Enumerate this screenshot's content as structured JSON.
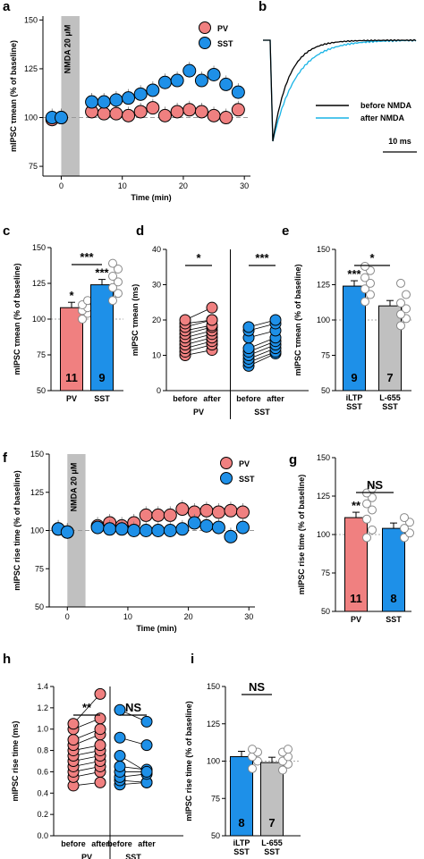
{
  "colors": {
    "pv": "#f08080",
    "sst": "#1e90e8",
    "gray": "#c0c0c0",
    "cyan": "#19b4e6"
  },
  "chart_data": [
    {
      "panel": "a",
      "type": "scatter",
      "xlabel": "Time  (min)",
      "ylabel": "mIPSC τmean (% of baseline)",
      "xticks": [
        0,
        10,
        20,
        30
      ],
      "yticks": [
        75,
        100,
        125,
        150
      ],
      "xlim": [
        -3,
        31
      ],
      "ylim": [
        70,
        152
      ],
      "shade_label": "NMDA 20 μM",
      "shade_x": [
        0,
        3
      ],
      "legend": [
        "PV",
        "SST"
      ],
      "series": [
        {
          "name": "PV",
          "x": [
            -1.5,
            0,
            5,
            7,
            9,
            11,
            13,
            15,
            17,
            19,
            21,
            23,
            25,
            27,
            29
          ],
          "y": [
            99,
            100,
            103,
            102,
            102,
            101,
            103,
            105,
            101,
            103,
            104,
            103,
            101,
            100,
            104
          ]
        },
        {
          "name": "SST",
          "x": [
            -1.5,
            0,
            5,
            7,
            9,
            11,
            13,
            15,
            17,
            19,
            21,
            23,
            25,
            27,
            29
          ],
          "y": [
            100,
            100,
            108,
            108,
            109,
            110,
            112,
            114,
            118,
            119,
            124,
            119,
            122,
            117,
            113
          ]
        }
      ]
    },
    {
      "panel": "b",
      "type": "line",
      "legend": [
        "before NMDA",
        "after NMDA"
      ],
      "scalebar": "10 ms"
    },
    {
      "panel": "c",
      "type": "bar",
      "ylabel": "mIPSC τmean (% of baseline)",
      "yticks": [
        50,
        75,
        100,
        125,
        150
      ],
      "ylim": [
        50,
        150
      ],
      "categories": [
        "PV",
        "SST"
      ],
      "values": [
        108,
        124
      ],
      "n": [
        "11",
        "9"
      ],
      "stars": [
        "*",
        "***"
      ],
      "bracket": "***"
    },
    {
      "panel": "d",
      "type": "scatter",
      "ylabel": "mIPSC τmean (ms)",
      "yticks": [
        0,
        10,
        20,
        30,
        40
      ],
      "ylim": [
        0,
        40
      ],
      "xticks": [
        "before",
        "after",
        "before",
        "after"
      ],
      "groups": [
        "PV",
        "SST"
      ],
      "stars": [
        "*",
        "***"
      ],
      "pv_pairs": [
        [
          10,
          11.5
        ],
        [
          11,
          13
        ],
        [
          12,
          14
        ],
        [
          13,
          15
        ],
        [
          14,
          16
        ],
        [
          15,
          17
        ],
        [
          16,
          18
        ],
        [
          17,
          18.5
        ],
        [
          18,
          20
        ],
        [
          19,
          20
        ],
        [
          20,
          23.5
        ]
      ],
      "sst_pairs": [
        [
          7,
          10.5
        ],
        [
          8,
          11
        ],
        [
          9,
          12
        ],
        [
          10,
          13
        ],
        [
          11,
          14
        ],
        [
          12,
          15
        ],
        [
          15,
          17
        ],
        [
          17,
          19
        ],
        [
          18,
          20
        ]
      ]
    },
    {
      "panel": "e",
      "type": "bar",
      "ylabel": "mIPSC τmean (% of baseline)",
      "yticks": [
        50,
        75,
        100,
        125,
        150
      ],
      "ylim": [
        50,
        150
      ],
      "categories": [
        "iLTP SST",
        "L-655 SST"
      ],
      "values": [
        124,
        110
      ],
      "n": [
        "9",
        "7"
      ],
      "stars": [
        "***",
        ""
      ],
      "bracket": "*"
    },
    {
      "panel": "f",
      "type": "scatter",
      "xlabel": "Time  (min)",
      "ylabel": "mIPSC rise time (% of baseline)",
      "xticks": [
        0,
        10,
        20,
        30
      ],
      "yticks": [
        50,
        75,
        100,
        125,
        150
      ],
      "xlim": [
        -3,
        31
      ],
      "ylim": [
        50,
        150
      ],
      "shade_label": "NMDA 20 μM",
      "shade_x": [
        0,
        3
      ],
      "legend": [
        "PV",
        "SST"
      ],
      "series": [
        {
          "name": "PV",
          "x": [
            -1.5,
            0,
            5,
            7,
            9,
            11,
            13,
            15,
            17,
            19,
            21,
            23,
            25,
            27,
            29
          ],
          "y": [
            101,
            99,
            103,
            105,
            103,
            105,
            110,
            110,
            110,
            114,
            112,
            113,
            112,
            113,
            112
          ]
        },
        {
          "name": "SST",
          "x": [
            -1.5,
            0,
            5,
            7,
            9,
            11,
            13,
            15,
            17,
            19,
            21,
            23,
            25,
            27,
            29
          ],
          "y": [
            101,
            99,
            102,
            101,
            101,
            100,
            100,
            100,
            100,
            101,
            105,
            103,
            102,
            96,
            102
          ]
        }
      ]
    },
    {
      "panel": "g",
      "type": "bar",
      "ylabel": "mIPSC rise time (% of baseline)",
      "yticks": [
        50,
        75,
        100,
        125,
        150
      ],
      "ylim": [
        50,
        150
      ],
      "categories": [
        "PV",
        "SST"
      ],
      "values": [
        111,
        104
      ],
      "n": [
        "11",
        "8"
      ],
      "stars": [
        "**",
        ""
      ],
      "bracket": "NS"
    },
    {
      "panel": "h",
      "type": "scatter",
      "ylabel": "mIPSC rise time (ms)",
      "yticks": [
        0.0,
        0.2,
        0.4,
        0.6,
        0.8,
        1.0,
        1.2,
        1.4
      ],
      "ylim": [
        0,
        1.4
      ],
      "xticks": [
        "before",
        "after",
        "before",
        "after"
      ],
      "groups": [
        "PV",
        "SST"
      ],
      "stars": [
        "**",
        "NS"
      ],
      "pv_pairs": [
        [
          0.47,
          0.5
        ],
        [
          0.55,
          0.6
        ],
        [
          0.6,
          0.65
        ],
        [
          0.65,
          0.7
        ],
        [
          0.7,
          0.75
        ],
        [
          0.75,
          0.8
        ],
        [
          0.8,
          0.85
        ],
        [
          0.85,
          0.95
        ],
        [
          0.9,
          1.0
        ],
        [
          1.0,
          1.1
        ],
        [
          1.05,
          1.33
        ]
      ],
      "sst_pairs": [
        [
          0.48,
          0.5
        ],
        [
          0.52,
          0.5
        ],
        [
          0.55,
          0.58
        ],
        [
          0.6,
          0.6
        ],
        [
          0.65,
          0.62
        ],
        [
          0.75,
          0.6
        ],
        [
          0.92,
          0.85
        ],
        [
          1.18,
          1.07
        ]
      ]
    },
    {
      "panel": "i",
      "type": "bar",
      "ylabel": "mIPSC rise time (% of baseline)",
      "yticks": [
        50,
        75,
        100,
        125,
        150
      ],
      "ylim": [
        50,
        150
      ],
      "categories": [
        "iLTP SST",
        "L-655 SST"
      ],
      "values": [
        103,
        99
      ],
      "n": [
        "8",
        "7"
      ],
      "stars": [
        "",
        ""
      ],
      "bracket": "NS"
    }
  ]
}
